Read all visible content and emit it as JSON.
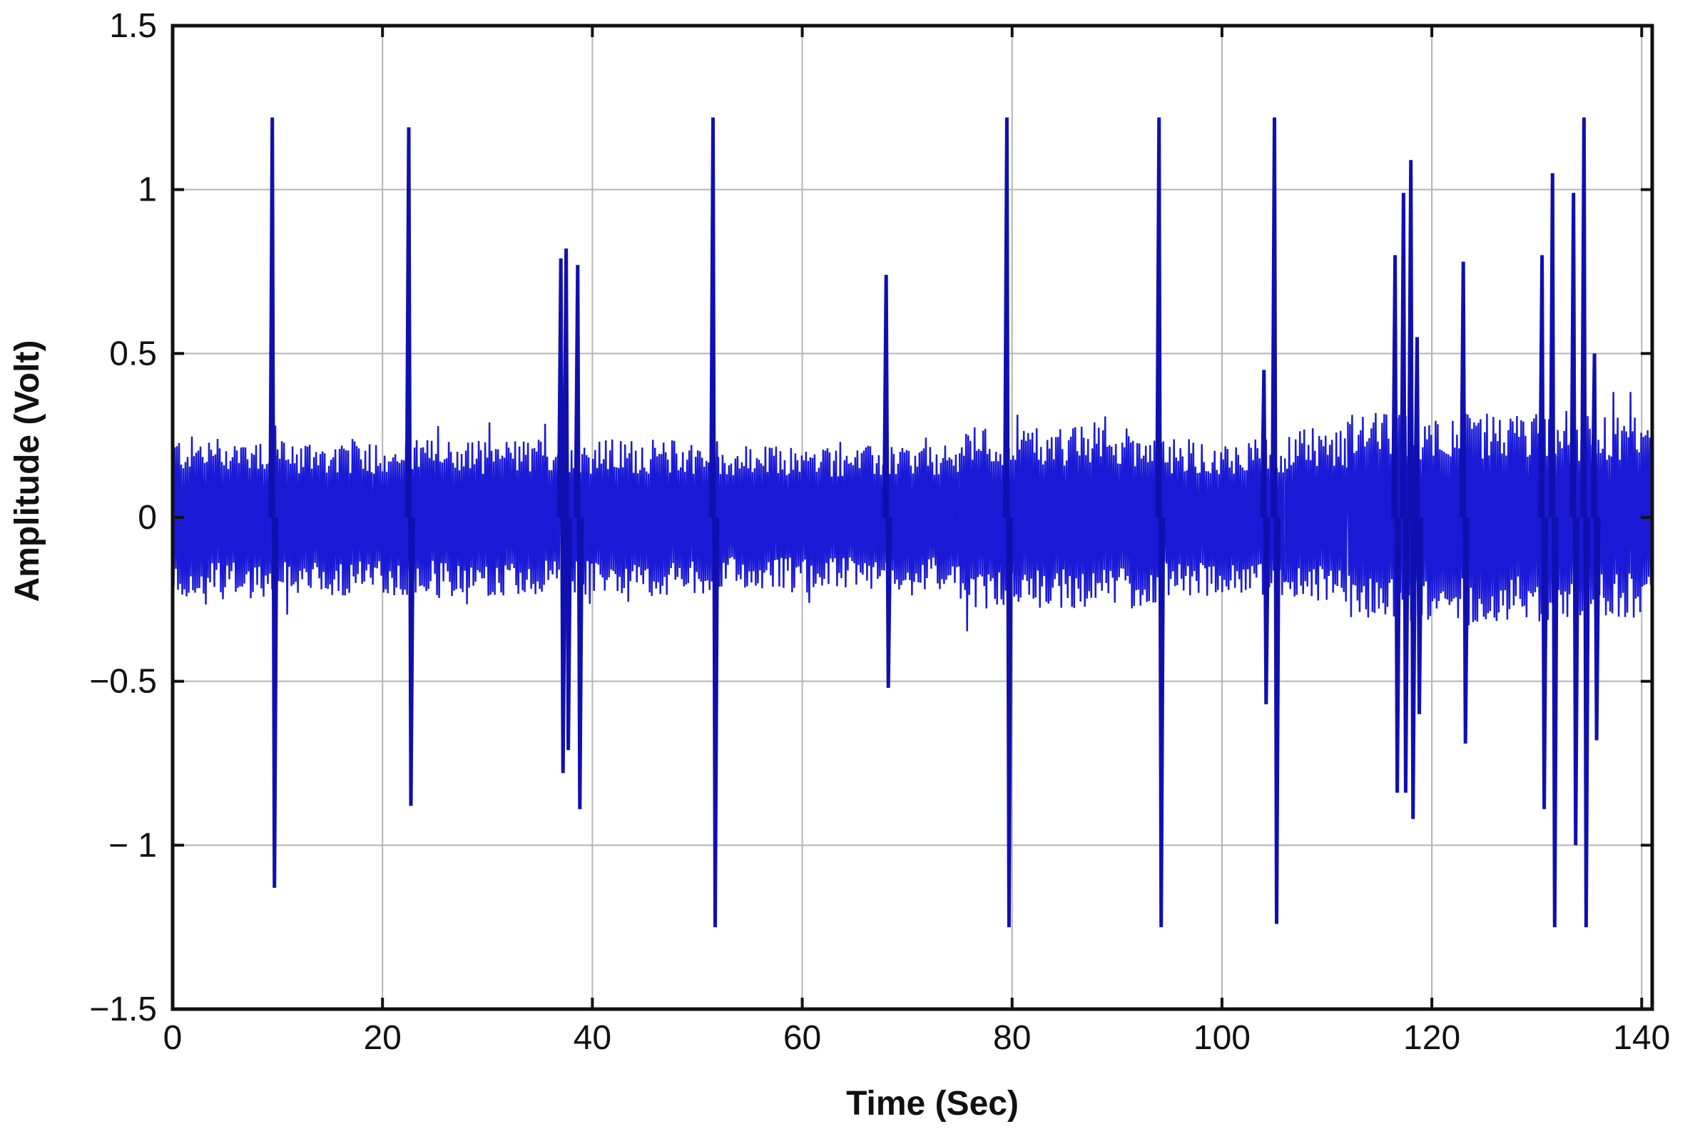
{
  "chart_data": {
    "type": "line",
    "title": "",
    "xlabel": "Time (Sec)",
    "ylabel": "Amplitude (Volt)",
    "xlim": [
      0,
      141
    ],
    "ylim": [
      -1.5,
      1.5
    ],
    "x_ticks": [
      0,
      20,
      40,
      60,
      80,
      100,
      120,
      140
    ],
    "x_tick_labels": [
      "0",
      "20",
      "40",
      "60",
      "80",
      "100",
      "120",
      "140"
    ],
    "y_ticks": [
      -1.5,
      -1,
      -0.5,
      0,
      0.5,
      1,
      1.5
    ],
    "y_tick_labels": [
      "−1.5",
      "− 1",
      "−0.5",
      "0",
      "0.5",
      "1",
      "1.5"
    ],
    "grid": true,
    "legend": "none",
    "series_color": "#1a1ad6",
    "noise_segments": [
      {
        "x_start": 0,
        "x_end": 10,
        "amplitude": 0.25
      },
      {
        "x_start": 10,
        "x_end": 37,
        "amplitude": 0.24
      },
      {
        "x_start": 37,
        "x_end": 52,
        "amplitude": 0.24
      },
      {
        "x_start": 52,
        "x_end": 75,
        "amplitude": 0.22
      },
      {
        "x_start": 75,
        "x_end": 94,
        "amplitude": 0.28
      },
      {
        "x_start": 94,
        "x_end": 106,
        "amplitude": 0.24
      },
      {
        "x_start": 106,
        "x_end": 112,
        "amplitude": 0.27
      },
      {
        "x_start": 112,
        "x_end": 132,
        "amplitude": 0.32
      },
      {
        "x_start": 132,
        "x_end": 141,
        "amplitude": 0.31
      }
    ],
    "spikes": [
      {
        "x": 9.5,
        "max": 1.22,
        "min": -1.13
      },
      {
        "x": 22.5,
        "max": 1.19,
        "min": -0.88
      },
      {
        "x": 37.0,
        "max": 0.79,
        "min": -0.78
      },
      {
        "x": 37.5,
        "max": 0.82,
        "min": -0.71
      },
      {
        "x": 38.6,
        "max": 0.77,
        "min": -0.89
      },
      {
        "x": 51.5,
        "max": 1.22,
        "min": -1.25
      },
      {
        "x": 68.0,
        "max": 0.74,
        "min": -0.52
      },
      {
        "x": 79.5,
        "max": 1.22,
        "min": -1.25
      },
      {
        "x": 94.0,
        "max": 1.22,
        "min": -1.25
      },
      {
        "x": 104.0,
        "max": 0.45,
        "min": -0.57
      },
      {
        "x": 105.0,
        "max": 1.22,
        "min": -1.24
      },
      {
        "x": 116.5,
        "max": 0.8,
        "min": -0.84
      },
      {
        "x": 117.3,
        "max": 0.99,
        "min": -0.84
      },
      {
        "x": 118.0,
        "max": 1.09,
        "min": -0.92
      },
      {
        "x": 118.6,
        "max": 0.55,
        "min": -0.6
      },
      {
        "x": 123.0,
        "max": 0.78,
        "min": -0.69
      },
      {
        "x": 130.5,
        "max": 0.8,
        "min": -0.89
      },
      {
        "x": 131.5,
        "max": 1.05,
        "min": -1.25
      },
      {
        "x": 133.5,
        "max": 0.99,
        "min": -1.0
      },
      {
        "x": 134.5,
        "max": 1.22,
        "min": -1.25
      },
      {
        "x": 135.5,
        "max": 0.5,
        "min": -0.68
      }
    ]
  }
}
